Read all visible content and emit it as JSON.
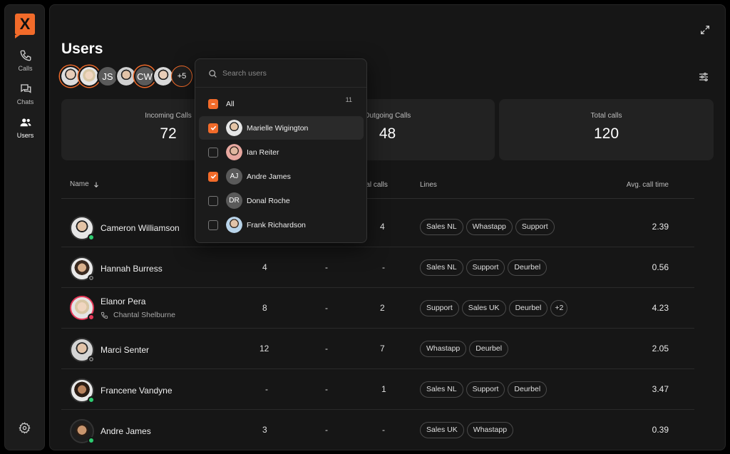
{
  "app": {
    "logo": "X",
    "accent": "#f26b2a",
    "nav": [
      {
        "label": "Calls",
        "icon": "phone-icon"
      },
      {
        "label": "Chats",
        "icon": "chat-icon"
      },
      {
        "label": "Users",
        "icon": "users-icon",
        "active": true
      }
    ],
    "settings_icon": "gear-icon"
  },
  "page": {
    "title": "Users",
    "selected_avatars": [
      {
        "type": "photo",
        "selected": true
      },
      {
        "type": "photo",
        "selected": true
      },
      {
        "type": "initials",
        "text": "JS"
      },
      {
        "type": "photo"
      },
      {
        "type": "initials",
        "text": "CW",
        "selected": true
      },
      {
        "type": "photo"
      },
      {
        "type": "more",
        "text": "+5"
      }
    ]
  },
  "stats": [
    {
      "label": "Incoming Calls",
      "value": "72"
    },
    {
      "label": "Outgoing Calls",
      "value": "48"
    },
    {
      "label": "Total calls",
      "value": "120"
    }
  ],
  "table": {
    "headers": {
      "name": "Name",
      "total": "Total calls",
      "lines": "Lines",
      "avg": "Avg. call time"
    },
    "rows": [
      {
        "name": "Cameron Williamson",
        "status": "online",
        "incoming": "",
        "outgoing": "",
        "total": "4",
        "lines": [
          "Sales NL",
          "Whastapp",
          "Support"
        ],
        "avg": "2.39"
      },
      {
        "name": "Hannah Burress",
        "status": "offline",
        "incoming": "4",
        "outgoing": "-",
        "total": "-",
        "lines": [
          "Sales NL",
          "Support",
          "Deurbel"
        ],
        "avg": "0.56"
      },
      {
        "name": "Elanor Pera",
        "status": "busy",
        "call_with": "Chantal Shelburne",
        "incoming": "8",
        "outgoing": "-",
        "total": "2",
        "lines": [
          "Support",
          "Sales UK",
          "Deurbel"
        ],
        "lines_more": "+2",
        "avg": "4.23"
      },
      {
        "name": "Marci Senter",
        "status": "offline",
        "incoming": "12",
        "outgoing": "-",
        "total": "7",
        "lines": [
          "Whastapp",
          "Deurbel"
        ],
        "avg": "2.05"
      },
      {
        "name": "Francene Vandyne",
        "status": "online",
        "incoming": "-",
        "outgoing": "-",
        "total": "1",
        "lines": [
          "Sales NL",
          "Support",
          "Deurbel"
        ],
        "avg": "3.47"
      },
      {
        "name": "Andre James",
        "status": "online",
        "incoming": "3",
        "outgoing": "-",
        "total": "-",
        "lines": [
          "Sales UK",
          "Whastapp"
        ],
        "avg": "0.39"
      }
    ]
  },
  "dropdown": {
    "search_placeholder": "Search users",
    "all_label": "All",
    "all_count": "11",
    "items": [
      {
        "name": "Marielle Wigington",
        "checked": true,
        "avatar": "photo",
        "highlighted": true
      },
      {
        "name": "Ian Reiter",
        "checked": false,
        "avatar": "photo"
      },
      {
        "name": "Andre James",
        "checked": true,
        "avatar": "initials",
        "initials": "AJ"
      },
      {
        "name": "Donal Roche",
        "checked": false,
        "avatar": "initials",
        "initials": "DR"
      },
      {
        "name": "Frank Richardson",
        "checked": false,
        "avatar": "photo"
      }
    ]
  }
}
